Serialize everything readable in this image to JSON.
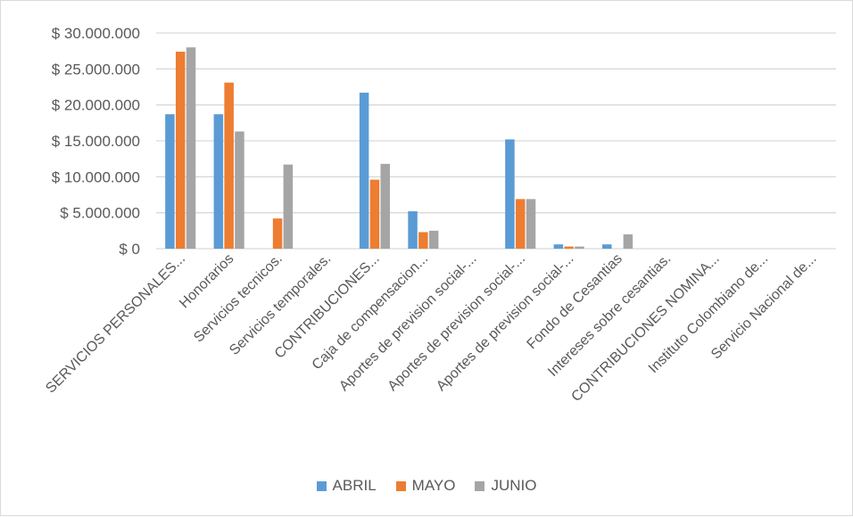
{
  "chart_data": {
    "type": "bar",
    "categories": [
      "SERVICIOS PERSONALES...",
      "Honorarios",
      "Servicios tecnicos.",
      "Servicios temporales.",
      "CONTRIBUCIONES...",
      "Caja de compensacion...",
      "Aportes de prevision social-...",
      "Aportes de prevision social-...",
      "Aportes de prevision social-...",
      "Fondo de Cesantias",
      "Intereses sobre cesantias.",
      "CONTRIBUCIONES NOMINA...",
      "Instituto Colombiano de...",
      "Servicio Nacional de..."
    ],
    "series": [
      {
        "name": "ABRIL",
        "color": "#5b9bd5",
        "values": [
          18700000,
          18700000,
          0,
          0,
          21700000,
          5200000,
          0,
          15200000,
          600000,
          600000,
          0,
          0,
          0,
          0
        ]
      },
      {
        "name": "MAYO",
        "color": "#ed7d31",
        "values": [
          27400000,
          23100000,
          4200000,
          0,
          9600000,
          2300000,
          0,
          6900000,
          300000,
          0,
          0,
          0,
          0,
          0
        ]
      },
      {
        "name": "JUNIO",
        "color": "#a5a5a5",
        "values": [
          28000000,
          16300000,
          11700000,
          0,
          11800000,
          2500000,
          0,
          6900000,
          300000,
          2000000,
          0,
          0,
          0,
          0
        ]
      }
    ],
    "y_ticks": [
      {
        "value": 0,
        "label": "$ 0"
      },
      {
        "value": 5000000,
        "label": "$ 5.000.000"
      },
      {
        "value": 10000000,
        "label": "$ 10.000.000"
      },
      {
        "value": 15000000,
        "label": "$ 15.000.000"
      },
      {
        "value": 20000000,
        "label": "$ 20.000.000"
      },
      {
        "value": 25000000,
        "label": "$ 25.000.000"
      },
      {
        "value": 30000000,
        "label": "$ 30.000.000"
      }
    ],
    "ylim": [
      0,
      30000000
    ],
    "title": "",
    "xlabel": "",
    "ylabel": "",
    "grid": true,
    "legend_position": "bottom",
    "gridline_color": "#d9d9d9"
  }
}
